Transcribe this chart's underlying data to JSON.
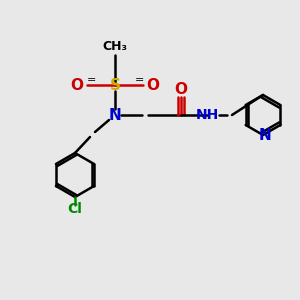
{
  "bg_color": "#e8e8e8",
  "black": "#000000",
  "blue": "#0000cc",
  "red": "#cc0000",
  "yellow_s": "#ccaa00",
  "green_cl": "#008800",
  "atom_colors": {
    "N": "#0000cc",
    "O": "#cc0000",
    "S": "#ccaa00",
    "Cl": "#008800",
    "C": "#000000",
    "H": "#0000cc"
  }
}
